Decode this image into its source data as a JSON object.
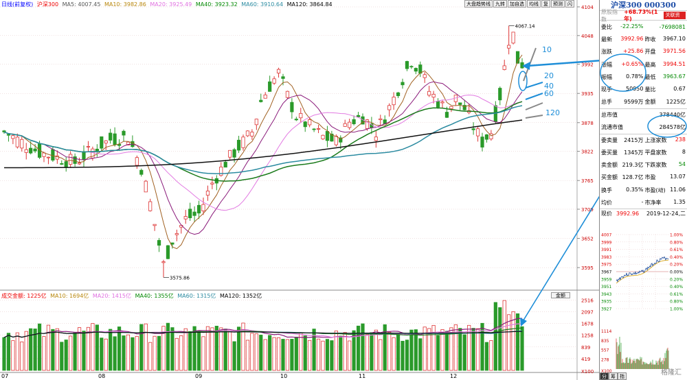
{
  "header": {
    "period": "日线(前复权)",
    "name": "沪深300",
    "ma5": "MA5: 4007.45",
    "ma10": "MA10: 3982.86",
    "ma20": "MA20: 3925.49",
    "ma40": "MA40: 3923.32",
    "ma60": "MA60: 3910.64",
    "ma120": "MA120: 3864.84"
  },
  "toolbar": [
    "大盘趋势线",
    "九转",
    "加自选",
    "均线",
    "复",
    "预测",
    "闪"
  ],
  "volume_header": {
    "amount": "成交金额: 1225亿",
    "ma10": "MA10: 1694亿",
    "ma20": "MA20: 1415亿",
    "ma40": "MA40: 1355亿",
    "ma60": "MA60: 1315亿",
    "ma120": "MA120: 1352亿",
    "tool": "金额"
  },
  "price_axis": [
    "4104",
    "4048",
    "3992",
    "3935",
    "3878",
    "3822",
    "3765",
    "3709",
    "3652",
    "3595"
  ],
  "volume_axis": [
    "2516",
    "2097",
    "1678",
    "1258",
    "839",
    "419",
    "X100"
  ],
  "dates": [
    "07",
    "08",
    "09",
    "10",
    "11",
    "12"
  ],
  "annotations": {
    "high": "4067.14",
    "low": "3575.86",
    "ma_labels": [
      "10",
      "20",
      "40",
      "60",
      "120"
    ]
  },
  "panel": {
    "title": "沪深300 000300",
    "ref": "原股指数",
    "change": "+68.73%(1年)",
    "btn": "关联资源",
    "rows": [
      {
        "l1": "委比",
        "v1": "-22.25%",
        "c1": "green",
        "l2": "",
        "v2": "-7698081",
        "c2": "green"
      },
      {
        "l1": "最新",
        "v1": "3992.96",
        "c1": "red",
        "l2": "昨收",
        "v2": "3967.10",
        "c2": ""
      },
      {
        "l1": "涨跌",
        "v1": "+25.86",
        "c1": "red",
        "l2": "开盘",
        "v2": "3971.56",
        "c2": "red"
      },
      {
        "l1": "涨幅",
        "v1": "+0.65%",
        "c1": "red",
        "l2": "最高",
        "v2": "3994.51",
        "c2": "red"
      },
      {
        "l1": "振幅",
        "v1": "0.78%",
        "c1": "",
        "l2": "最低",
        "v2": "3963.67",
        "c2": "green"
      },
      {
        "l1": "现手",
        "v1": "50950",
        "c1": "",
        "l2": "量比",
        "v2": "0.67",
        "c2": ""
      },
      {
        "l1": "总手",
        "v1": "9599万",
        "c1": "",
        "l2": "金额",
        "v2": "1225亿",
        "c2": ""
      },
      {
        "l1": "总市值",
        "v1": "",
        "c1": "",
        "l2": "",
        "v2": "378440亿",
        "c2": ""
      },
      {
        "l1": "流通市值",
        "v1": "",
        "c1": "",
        "l2": "",
        "v2": "284578亿",
        "c2": ""
      },
      {
        "l1": "委卖量",
        "v1": "2415万",
        "c1": "",
        "l2": "上涨家数",
        "v2": "238",
        "c2": "red"
      },
      {
        "l1": "委买量",
        "v1": "1345万",
        "c1": "",
        "l2": "平盘家数",
        "v2": "8",
        "c2": ""
      },
      {
        "l1": "卖金额",
        "v1": "219.3亿",
        "c1": "",
        "l2": "下跌家数",
        "v2": "54",
        "c2": "green"
      },
      {
        "l1": "买金额",
        "v1": "128.7亿",
        "c1": "",
        "l2": "市盈",
        "v2": "13.07",
        "c2": ""
      },
      {
        "l1": "换手",
        "v1": "0.35%",
        "c1": "",
        "l2": "市盈(动)",
        "v2": "11.06",
        "c2": ""
      },
      {
        "l1": "均价",
        "v1": "-",
        "c1": "",
        "l2": "市净率",
        "v2": "1.35",
        "c2": ""
      }
    ],
    "now_label": "现价",
    "now_price": "3992.96",
    "now_date": "2019-12-24,二",
    "mini_left": [
      "4007",
      "3999",
      "3991",
      "3983",
      "3975",
      "3967",
      "3959",
      "3951",
      "3943",
      "3935",
      "3927"
    ],
    "mini_right": [
      "1.00%",
      "0.80%",
      "0.61%",
      "0.40%",
      "0.20%",
      "0.00%",
      "0.20%",
      "0.40%",
      "0.61%",
      "0.80%",
      "1.00%"
    ],
    "mini_vol": [
      "1114",
      "835",
      "557",
      "278",
      "X100"
    ],
    "tabs": [
      "分",
      "筹",
      "指"
    ]
  },
  "watermark": "格隆汇"
}
